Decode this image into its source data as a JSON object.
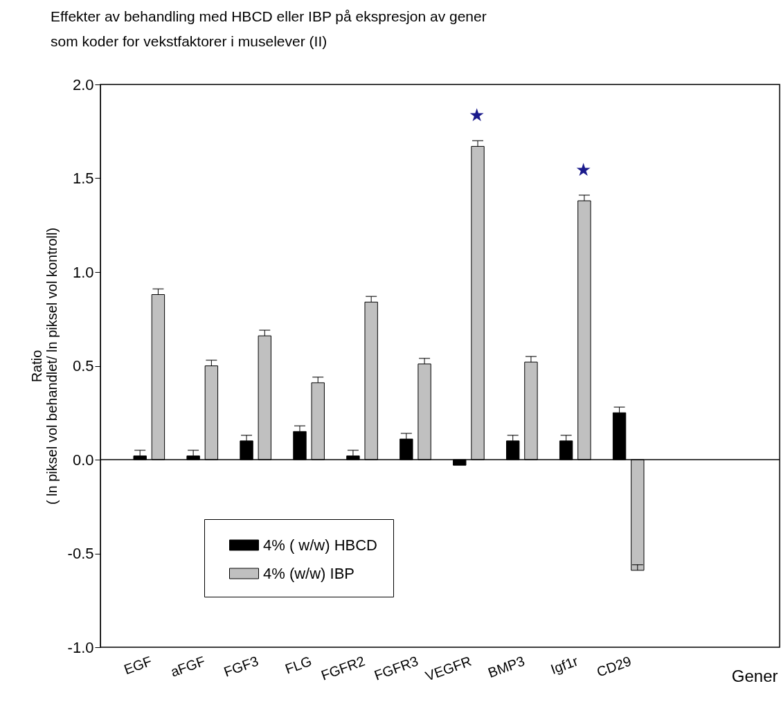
{
  "chart_data": {
    "type": "bar",
    "title": [
      "Effekter av behandling med HBCD eller IBP på ekspresjon av  gener",
      "som koder for vekstfaktorer i muselever (II)"
    ],
    "ylabel": [
      "Ratio",
      "( ln piksel vol behandlet/ ln piksel vol kontroll)"
    ],
    "xlabel": "Gener",
    "categories": [
      "EGF",
      "aFGF",
      "FGF3",
      "FLG",
      "FGFR2",
      "FGFR3",
      "VEGFR",
      "BMP3",
      "Igf1r",
      "CD29"
    ],
    "series": [
      {
        "name": "4% ( w/w) HBCD",
        "color": "#000000",
        "values": [
          0.02,
          0.02,
          0.1,
          0.15,
          0.02,
          0.11,
          -0.03,
          0.1,
          0.1,
          0.25
        ],
        "errors": [
          [
            0.02,
            0.05
          ],
          [
            0.02,
            0.05
          ],
          [
            0.1,
            0.13
          ],
          [
            0.15,
            0.18
          ],
          [
            0.02,
            0.05
          ],
          [
            0.11,
            0.14
          ],
          null,
          [
            0.1,
            0.13
          ],
          [
            0.1,
            0.13
          ],
          [
            0.25,
            0.28
          ]
        ]
      },
      {
        "name": "4% (w/w) IBP",
        "color": "#c0c0c0",
        "values": [
          0.88,
          0.5,
          0.66,
          0.41,
          0.84,
          0.51,
          1.67,
          0.52,
          1.38,
          -0.59
        ],
        "errors": [
          [
            0.88,
            0.91
          ],
          [
            0.5,
            0.53
          ],
          [
            0.66,
            0.69
          ],
          [
            0.41,
            0.44
          ],
          [
            0.84,
            0.87
          ],
          [
            0.51,
            0.54
          ],
          [
            1.67,
            1.7
          ],
          [
            0.52,
            0.55
          ],
          [
            1.38,
            1.41
          ],
          [
            -0.59,
            -0.56
          ]
        ]
      }
    ],
    "annotations": [
      {
        "text": "★",
        "x": "VEGFR",
        "y": 1.67
      },
      {
        "text": "★",
        "x": "Igf1r",
        "y": 1.38
      }
    ],
    "ylim": [
      -1,
      2
    ],
    "yticks": [
      {
        "value": -1,
        "label": "-1.0"
      },
      {
        "value": -0.5,
        "label": "-0.5"
      },
      {
        "value": 0,
        "label": "0.0"
      },
      {
        "value": 0.5,
        "label": "0.5"
      },
      {
        "value": 1,
        "label": "1.0"
      },
      {
        "value": 1.5,
        "label": "1.5"
      },
      {
        "value": 2,
        "label": "2.0"
      }
    ],
    "ref_lines": [
      {
        "axis": "y",
        "value": 0
      }
    ],
    "legend": "bottom left",
    "grid": false
  }
}
